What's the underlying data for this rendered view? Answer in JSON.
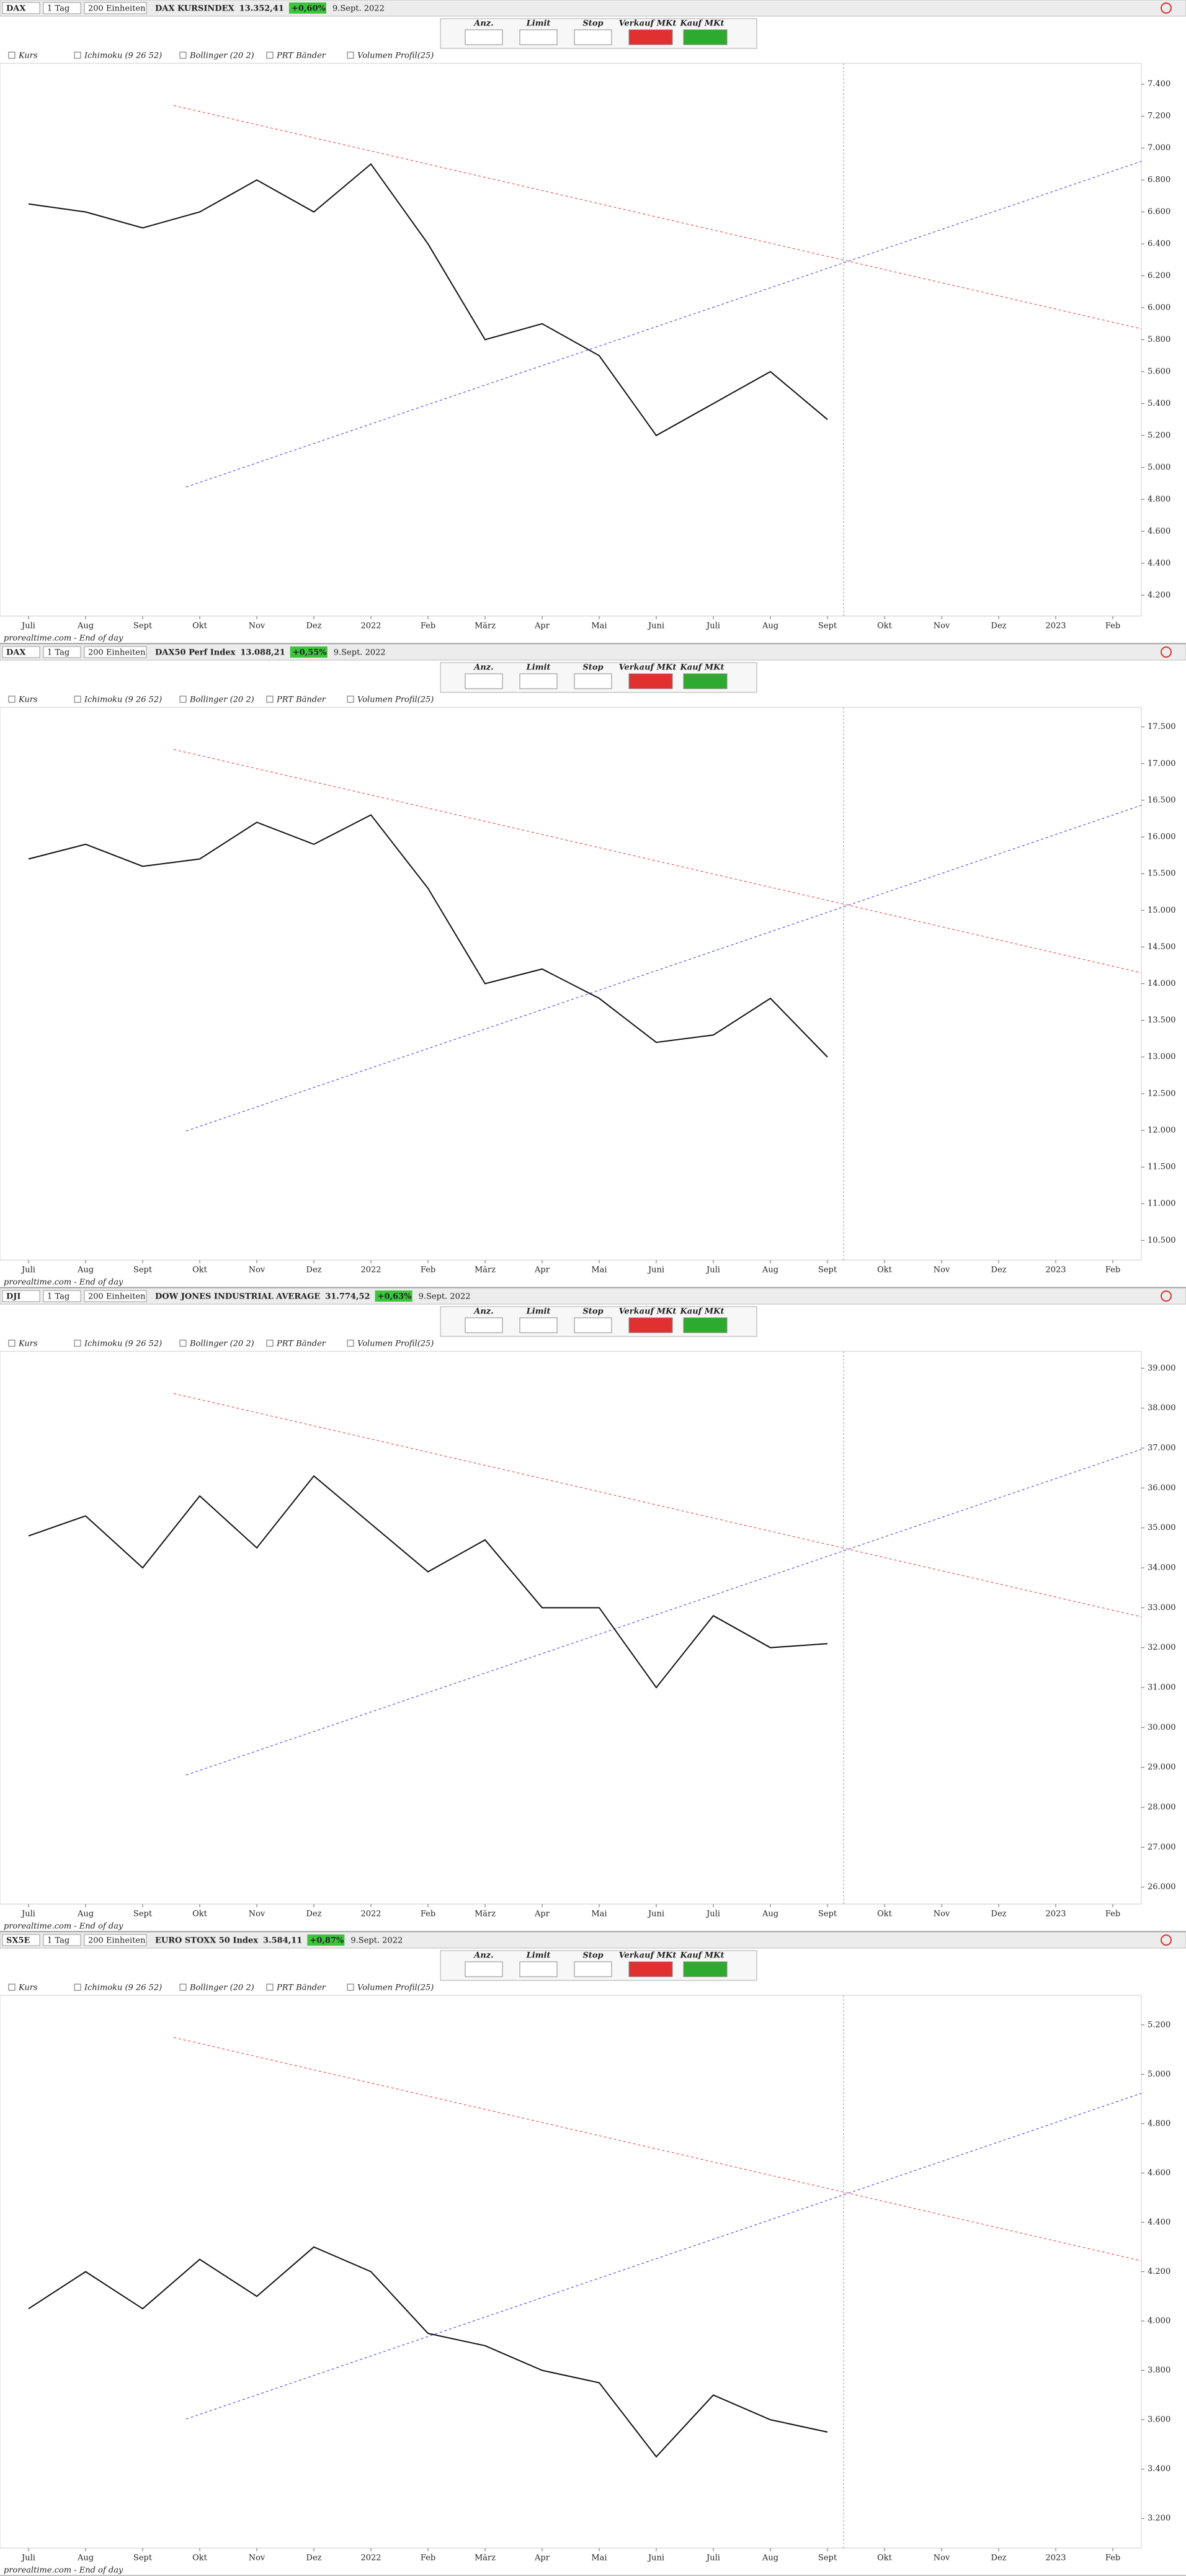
{
  "toolbar": {
    "interval": "1 Tag",
    "units": "200 Einheiten",
    "order_types": [
      "Anz.",
      "Limit",
      "Stop",
      "Verkauf MKt",
      "Kauf MKt"
    ],
    "indicators": [
      "Kurs",
      "Ichimoku (9 26 52)",
      "Bollinger (20 2)",
      "PRT Bänder",
      "Volumen Profil(25)"
    ],
    "footer": "prorealtime.com - End of day"
  },
  "chart_data": [
    {
      "type": "line",
      "symbol": "DAX",
      "title": "DAX KURSINDEX",
      "price": "13.352,41",
      "change": "+0,60%",
      "date": "9.Sept. 2022",
      "categories": [
        "Juli",
        "Aug",
        "Sept",
        "Okt",
        "Nov",
        "Dez",
        "2022",
        "Feb",
        "März",
        "Apr",
        "Mai",
        "Juni",
        "Juli",
        "Aug",
        "Sept",
        "Okt",
        "Nov",
        "Dez",
        "2023",
        "Feb"
      ],
      "series": [
        {
          "name": "DAX",
          "color": "#111111",
          "values": [
            6650,
            6600,
            6500,
            6600,
            6800,
            6600,
            6900,
            6400,
            5800,
            5900,
            5700,
            5200,
            5400,
            5600,
            5300,
            null,
            null,
            null,
            null,
            null
          ]
        }
      ],
      "ylim": [
        4100,
        7500
      ],
      "yticks": [
        {
          "value": 4200,
          "label": "4.200"
        },
        {
          "value": 4400,
          "label": "4.400"
        },
        {
          "value": 4600,
          "label": "4.600"
        },
        {
          "value": 4800,
          "label": "4.800"
        },
        {
          "value": 5000,
          "label": "5.000"
        },
        {
          "value": 5200,
          "label": "5.200"
        },
        {
          "value": 5400,
          "label": "5.400"
        },
        {
          "value": 5600,
          "label": "5.600"
        },
        {
          "value": 5800,
          "label": "5.800"
        },
        {
          "value": 6000,
          "label": "6.000"
        },
        {
          "value": 6200,
          "label": "6.200"
        },
        {
          "value": 6400,
          "label": "6.400"
        },
        {
          "value": 6600,
          "label": "6.600"
        },
        {
          "value": 6800,
          "label": "6.800"
        },
        {
          "value": 7000,
          "label": "7.000"
        },
        {
          "value": 7200,
          "label": "7.200"
        },
        {
          "value": 7400,
          "label": "7.400"
        }
      ]
    },
    {
      "type": "line",
      "symbol": "DAX",
      "title": "DAX50 Perf Index",
      "price": "13.088,21",
      "change": "+0,55%",
      "date": "9.Sept. 2022",
      "categories": [
        "Juli",
        "Aug",
        "Sept",
        "Okt",
        "Nov",
        "Dez",
        "2022",
        "Feb",
        "März",
        "Apr",
        "Mai",
        "Juni",
        "Juli",
        "Aug",
        "Sept",
        "Okt",
        "Nov",
        "Dez",
        "2023",
        "Feb"
      ],
      "series": [
        {
          "name": "DAX50",
          "color": "#111111",
          "values": [
            15700,
            15900,
            15600,
            15700,
            16200,
            15900,
            16300,
            15300,
            14000,
            14200,
            13800,
            13200,
            13300,
            13800,
            13000,
            null,
            null,
            null,
            null,
            null
          ]
        }
      ],
      "ylim": [
        10300,
        17700
      ],
      "yticks": [
        {
          "value": 10500,
          "label": "10.500"
        },
        {
          "value": 11000,
          "label": "11.000"
        },
        {
          "value": 11500,
          "label": "11.500"
        },
        {
          "value": 12000,
          "label": "12.000"
        },
        {
          "value": 12500,
          "label": "12.500"
        },
        {
          "value": 13000,
          "label": "13.000"
        },
        {
          "value": 13500,
          "label": "13.500"
        },
        {
          "value": 14000,
          "label": "14.000"
        },
        {
          "value": 14500,
          "label": "14.500"
        },
        {
          "value": 15000,
          "label": "15.000"
        },
        {
          "value": 15500,
          "label": "15.500"
        },
        {
          "value": 16000,
          "label": "16.000"
        },
        {
          "value": 16500,
          "label": "16.500"
        },
        {
          "value": 17000,
          "label": "17.000"
        },
        {
          "value": 17500,
          "label": "17.500"
        }
      ]
    },
    {
      "type": "line",
      "symbol": "DJI",
      "title": "DOW JONES INDUSTRIAL AVERAGE",
      "price": "31.774,52",
      "change": "+0,63%",
      "date": "9.Sept. 2022",
      "categories": [
        "Juli",
        "Aug",
        "Sept",
        "Okt",
        "Nov",
        "Dez",
        "2022",
        "Feb",
        "März",
        "Apr",
        "Mai",
        "Juni",
        "Juli",
        "Aug",
        "Sept",
        "Okt",
        "Nov",
        "Dez",
        "2023",
        "Feb"
      ],
      "series": [
        {
          "name": "Dow Jones",
          "color": "#111111",
          "values": [
            34800,
            35300,
            34000,
            35800,
            34500,
            36300,
            35100,
            33900,
            34700,
            33000,
            33000,
            31000,
            32800,
            32000,
            32100,
            null,
            null,
            null,
            null,
            null
          ]
        }
      ],
      "ylim": [
        25700,
        39300
      ],
      "yticks": [
        {
          "value": 26000,
          "label": "26.000"
        },
        {
          "value": 27000,
          "label": "27.000"
        },
        {
          "value": 28000,
          "label": "28.000"
        },
        {
          "value": 29000,
          "label": "29.000"
        },
        {
          "value": 30000,
          "label": "30.000"
        },
        {
          "value": 31000,
          "label": "31.000"
        },
        {
          "value": 32000,
          "label": "32.000"
        },
        {
          "value": 33000,
          "label": "33.000"
        },
        {
          "value": 34000,
          "label": "34.000"
        },
        {
          "value": 35000,
          "label": "35.000"
        },
        {
          "value": 36000,
          "label": "36.000"
        },
        {
          "value": 37000,
          "label": "37.000"
        },
        {
          "value": 38000,
          "label": "38.000"
        },
        {
          "value": 39000,
          "label": "39.000"
        }
      ]
    },
    {
      "type": "line",
      "symbol": "SX5E",
      "title": "EURO STOXX 50 Index",
      "price": "3.584,11",
      "change": "+0,87%",
      "date": "9.Sept. 2022",
      "categories": [
        "Juli",
        "Aug",
        "Sept",
        "Okt",
        "Nov",
        "Dez",
        "2022",
        "Feb",
        "März",
        "Apr",
        "Mai",
        "Juni",
        "Juli",
        "Aug",
        "Sept",
        "Okt",
        "Nov",
        "Dez",
        "2023",
        "Feb"
      ],
      "series": [
        {
          "name": "Euro Stoxx 50",
          "color": "#111111",
          "values": [
            4050,
            4200,
            4050,
            4250,
            4100,
            4300,
            4200,
            3950,
            3900,
            3800,
            3750,
            3450,
            3700,
            3600,
            3550,
            null,
            null,
            null,
            null,
            null
          ]
        }
      ],
      "ylim": [
        3100,
        5300
      ],
      "yticks": [
        {
          "value": 3200,
          "label": "3.200"
        },
        {
          "value": 3400,
          "label": "3.400"
        },
        {
          "value": 3600,
          "label": "3.600"
        },
        {
          "value": 3800,
          "label": "3.800"
        },
        {
          "value": 4000,
          "label": "4.000"
        },
        {
          "value": 4200,
          "label": "4.200"
        },
        {
          "value": 4400,
          "label": "4.400"
        },
        {
          "value": 4600,
          "label": "4.600"
        },
        {
          "value": 4800,
          "label": "4.800"
        },
        {
          "value": 5000,
          "label": "5.000"
        },
        {
          "value": 5200,
          "label": "5.200"
        }
      ]
    }
  ]
}
